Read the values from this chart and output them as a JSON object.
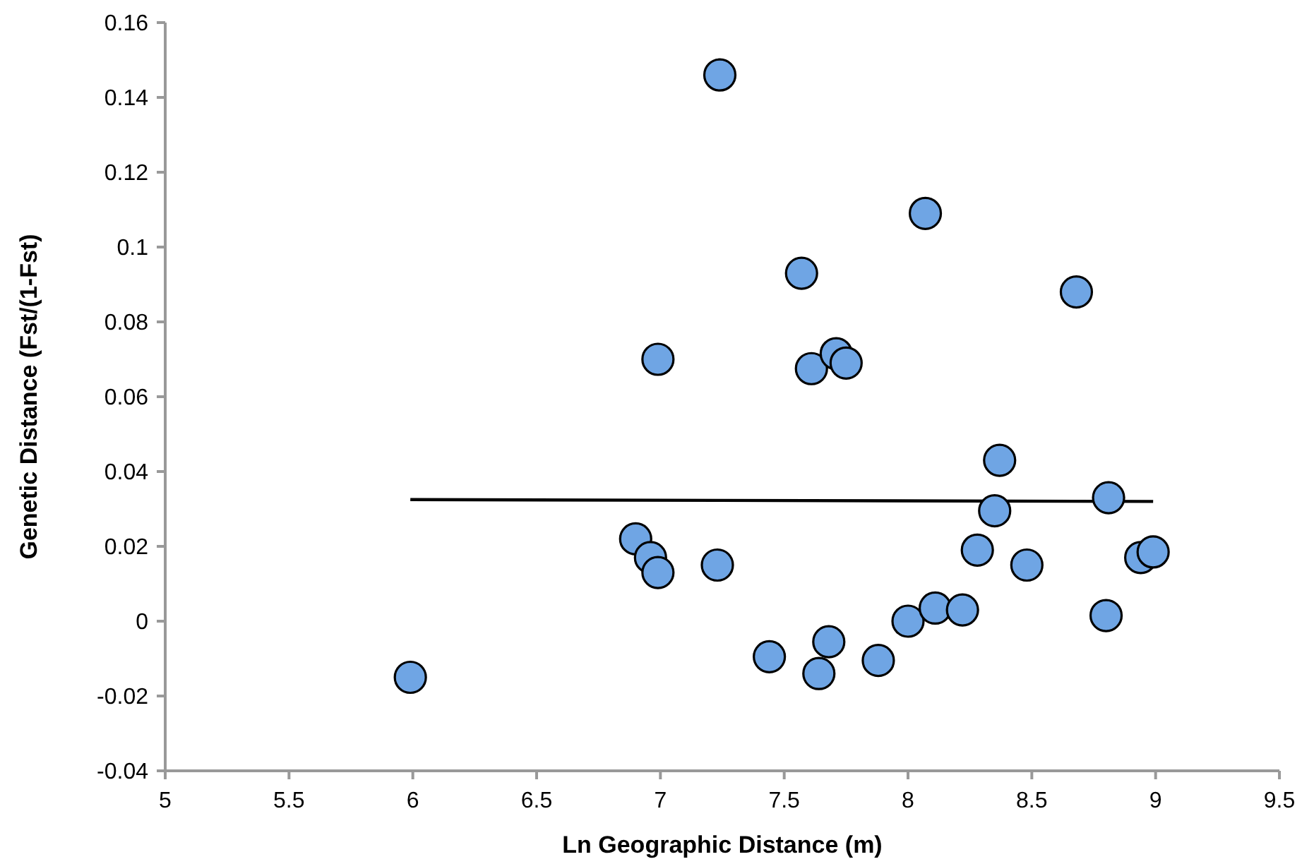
{
  "chart_data": {
    "type": "scatter",
    "xlabel": "Ln Geographic Distance (m)",
    "ylabel": "Genetic Distance (Fst/(1-Fst)",
    "xlim": [
      5,
      9.5
    ],
    "xticks": [
      5,
      5.5,
      6,
      6.5,
      7,
      7.5,
      8,
      8.5,
      9,
      9.5
    ],
    "ylim": [
      -0.04,
      0.16
    ],
    "yticks": [
      -0.04,
      -0.02,
      0,
      0.02,
      0.04,
      0.06,
      0.08,
      0.1,
      0.12,
      0.14,
      0.16
    ],
    "grid": false,
    "series": [
      {
        "color": "#6fa5e4",
        "marker": "circle",
        "x": [
          5.99,
          6.9,
          6.96,
          6.99,
          6.99,
          7.23,
          7.24,
          7.44,
          7.57,
          7.61,
          7.64,
          7.68,
          7.71,
          7.75,
          7.88,
          8.0,
          8.07,
          8.11,
          8.22,
          8.28,
          8.35,
          8.37,
          8.48,
          8.68,
          8.8,
          8.81,
          8.94,
          8.99
        ],
        "values": [
          -0.015,
          0.022,
          0.017,
          0.013,
          0.07,
          0.015,
          0.146,
          -0.0095,
          0.093,
          0.0675,
          -0.014,
          -0.0055,
          0.0715,
          0.069,
          -0.0105,
          0,
          0.109,
          0.0035,
          0.003,
          0.019,
          0.0295,
          0.043,
          0.015,
          0.088,
          0.0015,
          0.033,
          0.017,
          0.0185
        ]
      },
      {
        "type": "line",
        "color": "#000000",
        "marker": "none",
        "x": [
          5.99,
          8.99
        ],
        "values": [
          0.0325,
          0.032
        ]
      }
    ]
  }
}
